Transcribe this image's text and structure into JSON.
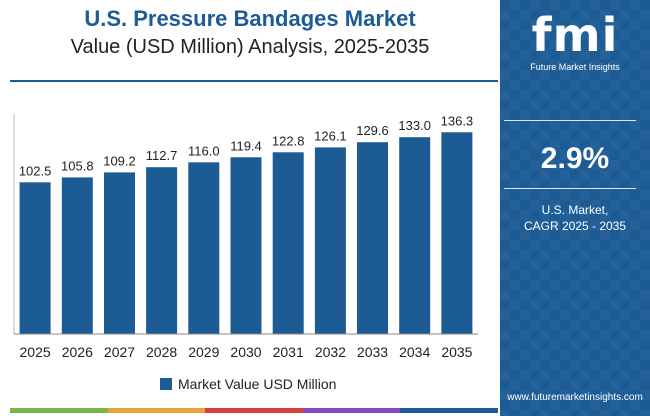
{
  "header": {
    "title": "U.S. Pressure Bandages Market",
    "subtitle": "Value (USD Million) Analysis, 2025-2035"
  },
  "chart_data": {
    "type": "bar",
    "categories": [
      "2025",
      "2026",
      "2027",
      "2028",
      "2029",
      "2030",
      "2031",
      "2032",
      "2033",
      "2034",
      "2035"
    ],
    "series": [
      {
        "name": "Market Value USD Million",
        "values": [
          102.5,
          105.8,
          109.2,
          112.7,
          116.0,
          119.4,
          122.8,
          126.1,
          129.6,
          133.0,
          136.3
        ],
        "labels": [
          "102.5",
          "105.8",
          "109.2",
          "112.7",
          "116.0",
          "119.4",
          "122.8",
          "126.1",
          "129.6",
          "133.0",
          "136.3"
        ]
      }
    ],
    "ylim": [
      0,
      150
    ],
    "grid": false,
    "legend_position": "bottom",
    "bar_color": "#1d5b95"
  },
  "legend": {
    "label": "Market Value USD Million"
  },
  "side_panel": {
    "logo_text": "fmi",
    "logo_subtext": "Future Market Insights",
    "cagr_value": "2.9%",
    "cagr_label_line1": "U.S. Market,",
    "cagr_label_line2": "CAGR 2025 - 2035",
    "website": "www.futuremarketinsights.com",
    "background_color": "#1d5b95"
  },
  "bottom_strip_colors": [
    "#7ab648",
    "#e8a33d",
    "#d93f3f",
    "#7c4dbb",
    "#1d5b95"
  ]
}
